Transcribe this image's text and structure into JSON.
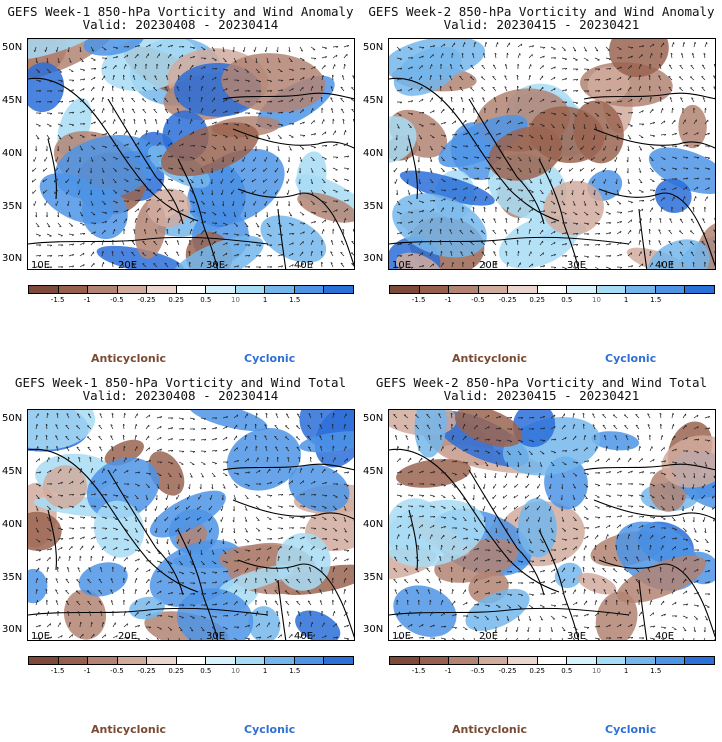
{
  "panels": [
    {
      "title": "GEFS Week-1 850-hPa Vorticity and Wind Anomaly",
      "valid": "Valid: 20230408 - 20230414"
    },
    {
      "title": "GEFS Week-2 850-hPa Vorticity and Wind Anomaly",
      "valid": "Valid: 20230415 - 20230421"
    },
    {
      "title": "GEFS Week-1 850-hPa Vorticity and Wind Total",
      "valid": "Valid: 20230408 - 20230414"
    },
    {
      "title": "GEFS Week-2 850-hPa Vorticity and Wind Total",
      "valid": "Valid: 20230415 - 20230421"
    }
  ],
  "lat_labels": [
    "50N",
    "45N",
    "40N",
    "35N",
    "30N"
  ],
  "lon_labels": [
    "10E",
    "20E",
    "30E",
    "40E"
  ],
  "colorbar": {
    "colors": [
      "#7d4a3a",
      "#97604c",
      "#b38473",
      "#d1ab9e",
      "#ead6cf",
      "#ffffff",
      "#d7f2fb",
      "#a8dcf4",
      "#74b6ec",
      "#4e94e6",
      "#2b6fd8"
    ],
    "labels": [
      "-1.5",
      "-1",
      "-0.5",
      "-0.25",
      "0.25",
      "0.5",
      "1",
      "1.5"
    ],
    "center_mark": "10"
  },
  "legend": {
    "anticyclonic": "Anticyclonic",
    "cyclonic": "Cyclonic"
  }
}
